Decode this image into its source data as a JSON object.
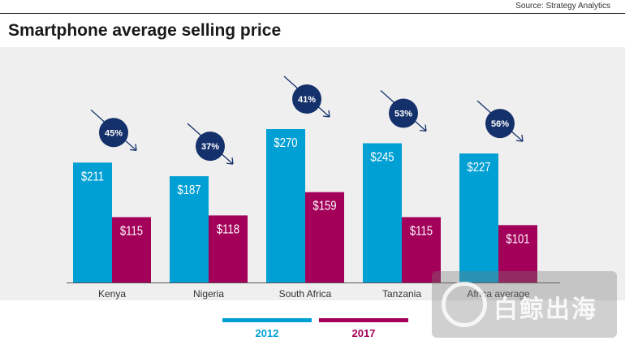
{
  "header": {
    "source": "Source: Strategy Analytics",
    "title": "Smartphone average selling price"
  },
  "colors": {
    "2012": "#009fd4",
    "2017": "#a3005a",
    "badge": "#15316b"
  },
  "chart_data": {
    "type": "bar",
    "title": "Smartphone average selling price",
    "categories": [
      "Kenya",
      "Nigeria",
      "South Africa",
      "Tanzania",
      "Africa average"
    ],
    "series": [
      {
        "name": "2012",
        "values": [
          211,
          187,
          270,
          245,
          227
        ],
        "labels": [
          "$211",
          "$187",
          "$270",
          "$245",
          "$227"
        ]
      },
      {
        "name": "2017",
        "values": [
          115,
          118,
          159,
          115,
          101
        ],
        "labels": [
          "$115",
          "$118",
          "$159",
          "$115",
          "$101"
        ]
      }
    ],
    "declines": [
      "45%",
      "37%",
      "41%",
      "53%",
      "56%"
    ],
    "ylim": [
      0,
      300
    ],
    "legend_position": "bottom"
  },
  "watermark": {
    "text": "白鲸出海"
  }
}
